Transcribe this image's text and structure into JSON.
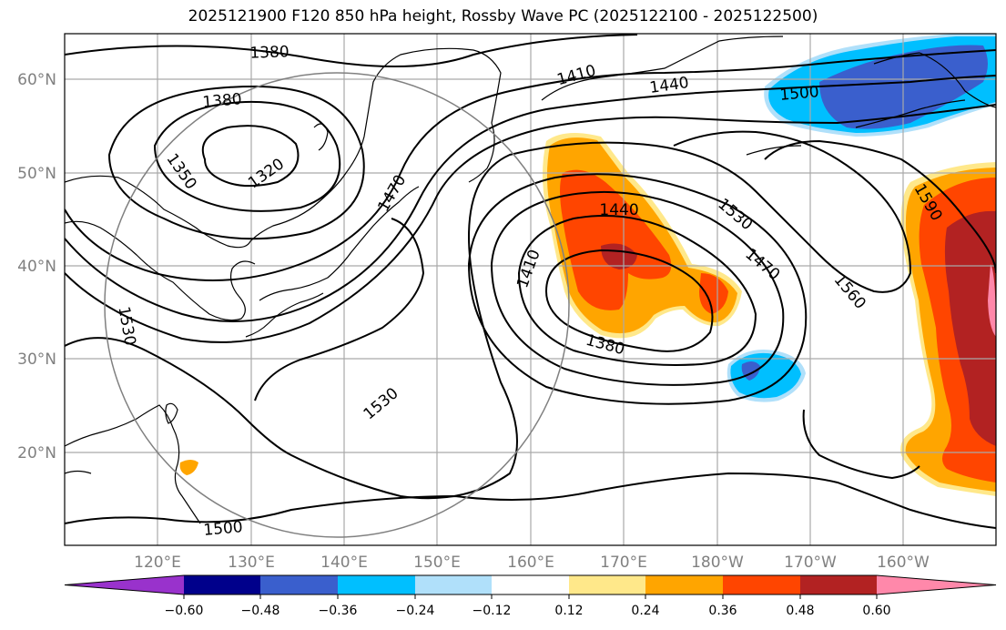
{
  "title": "2025121900 F120 850 hPa height, Rossby Wave PC (2025122100 - 2025122500)",
  "map": {
    "lat_labels": [
      "60°N",
      "50°N",
      "40°N",
      "30°N",
      "20°N"
    ],
    "lon_labels": [
      "120°E",
      "130°E",
      "140°E",
      "150°E",
      "160°E",
      "170°E",
      "180°W",
      "170°W",
      "160°W"
    ],
    "contour_labels": [
      "1380",
      "1380",
      "1350",
      "1320",
      "1470",
      "1410",
      "1440",
      "1500",
      "1590",
      "1530",
      "1470",
      "1560",
      "1440",
      "1410",
      "1380",
      "1530",
      "1530",
      "1500"
    ],
    "grid": true
  },
  "colorbar": {
    "ticks": [
      "−0.60",
      "−0.48",
      "−0.36",
      "−0.24",
      "−0.12",
      "0.12",
      "0.24",
      "0.36",
      "0.48",
      "0.60"
    ],
    "colors": [
      "#9932cc",
      "#00008b",
      "#3a5fcd",
      "#00bfff",
      "#b0e0fa",
      "#ffffff",
      "#ffe88a",
      "#ffa500",
      "#ff4500",
      "#b22222",
      "#ff88aa"
    ]
  }
}
